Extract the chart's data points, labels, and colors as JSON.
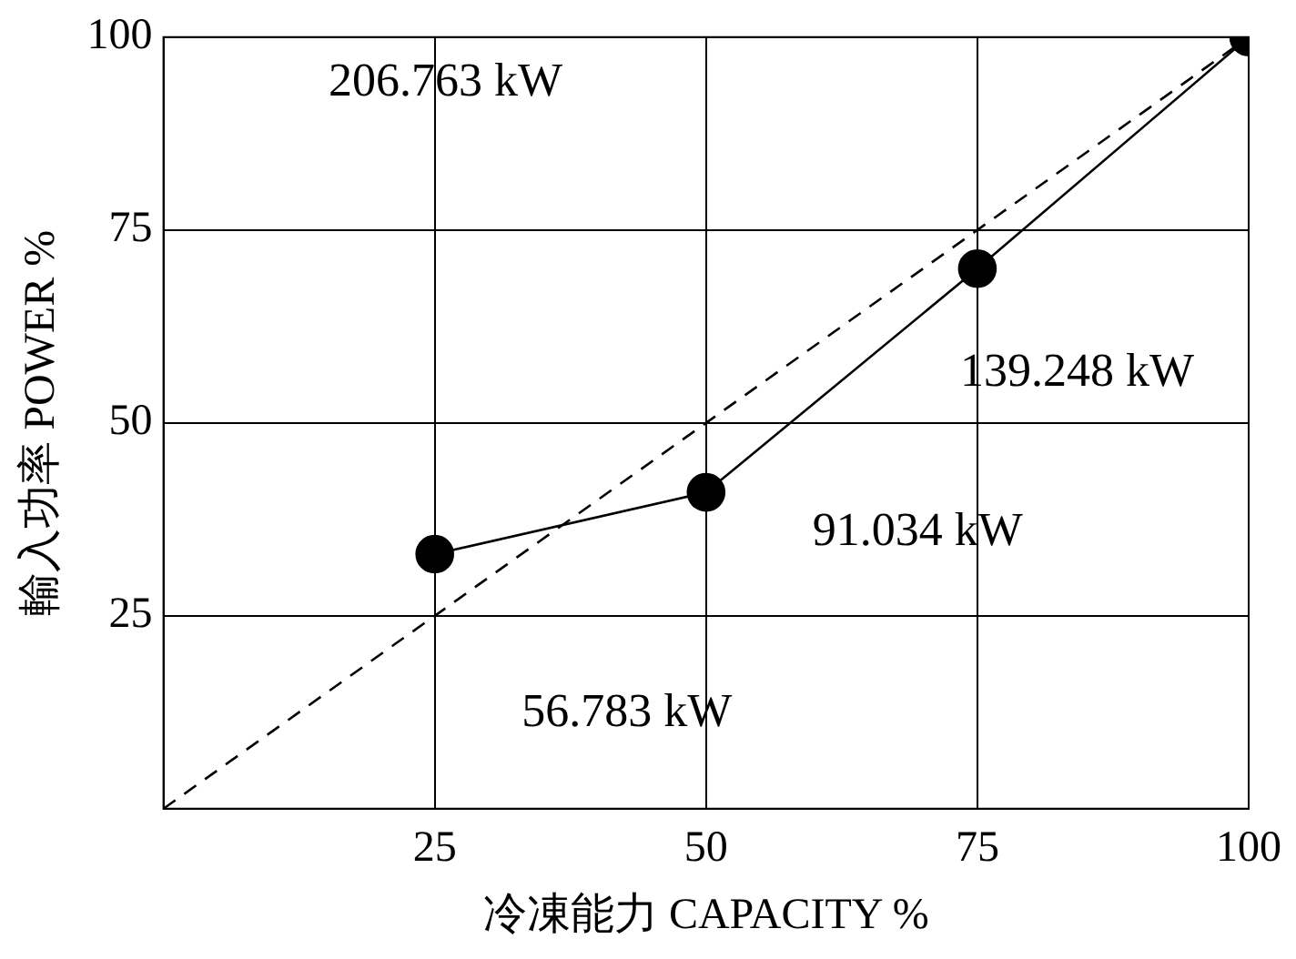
{
  "chart_data": {
    "type": "line",
    "xlabel": "冷凍能力 CAPACITY %",
    "ylabel": "輸入功率 POWER %",
    "xlim": [
      0,
      100
    ],
    "xticks": [
      25,
      50,
      75,
      100
    ],
    "ylim": [
      0,
      100
    ],
    "yticks": [
      25,
      50,
      75,
      100
    ],
    "grid": true,
    "legend": false,
    "series": [
      {
        "type": "line",
        "x": [
          25,
          50,
          75,
          100
        ],
        "values": [
          33,
          41,
          70,
          100
        ],
        "color": "#000000",
        "marker": "circle",
        "line_style": "solid"
      },
      {
        "type": "line",
        "x": [
          0,
          100
        ],
        "values": [
          0,
          100
        ],
        "color": "#000000",
        "marker": "none",
        "line_style": "dashed"
      }
    ],
    "annotations": [
      "56.783 kW",
      "91.034 kW",
      "139.248 kW",
      "206.763 kW"
    ]
  }
}
